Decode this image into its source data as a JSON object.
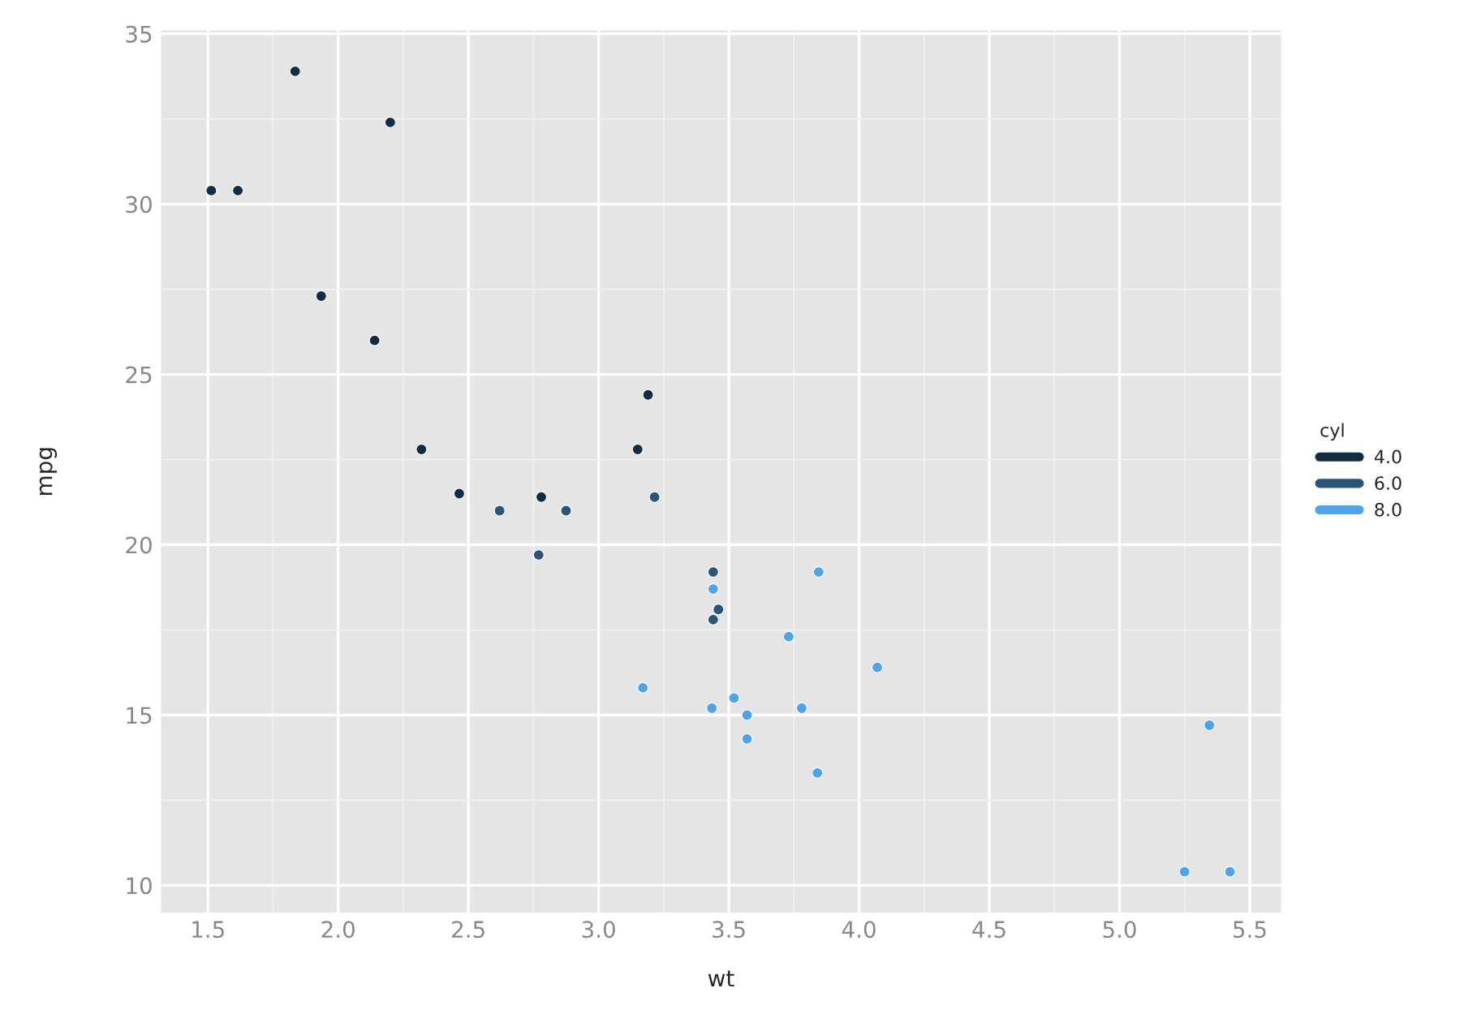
{
  "chart_data": {
    "type": "scatter",
    "xlabel": "wt",
    "ylabel": "mpg",
    "legend_title": "cyl",
    "series": [
      {
        "name": "4.0",
        "color": "#132b43",
        "x": [
          2.32,
          3.19,
          3.15,
          2.2,
          1.615,
          1.835,
          2.465,
          1.935,
          2.14,
          1.513,
          2.78
        ],
        "values": [
          22.8,
          24.4,
          22.8,
          32.4,
          30.4,
          33.9,
          21.5,
          27.3,
          26.0,
          30.4,
          21.4
        ]
      },
      {
        "name": "6.0",
        "color": "#2c5378",
        "x": [
          2.62,
          2.875,
          3.215,
          3.46,
          3.44,
          3.44,
          2.77
        ],
        "values": [
          21.0,
          21.0,
          21.4,
          18.1,
          19.2,
          17.8,
          19.7
        ]
      },
      {
        "name": "8.0",
        "color": "#4fa3e8",
        "x": [
          3.44,
          3.57,
          4.07,
          3.73,
          3.78,
          5.25,
          5.424,
          5.345,
          3.52,
          3.435,
          3.84,
          3.845,
          3.17,
          3.57
        ],
        "values": [
          18.7,
          14.3,
          16.4,
          17.3,
          15.2,
          10.4,
          10.4,
          14.7,
          15.5,
          15.2,
          13.3,
          19.2,
          15.8,
          15.0
        ]
      }
    ],
    "xlim": [
      1.32,
      5.62
    ],
    "ylim": [
      9.2,
      35.1
    ],
    "xticks": [
      1.5,
      {
        "value": 2,
        "label": "2.0"
      },
      2.5,
      {
        "value": 3,
        "label": "3.0"
      },
      3.5,
      {
        "value": 4,
        "label": "4.0"
      },
      4.5,
      {
        "value": 5,
        "label": "5.0"
      },
      5.5
    ],
    "yticks": [
      10,
      15,
      20,
      25,
      30,
      35
    ],
    "grid": true,
    "legend": "right",
    "marker": "circle"
  }
}
